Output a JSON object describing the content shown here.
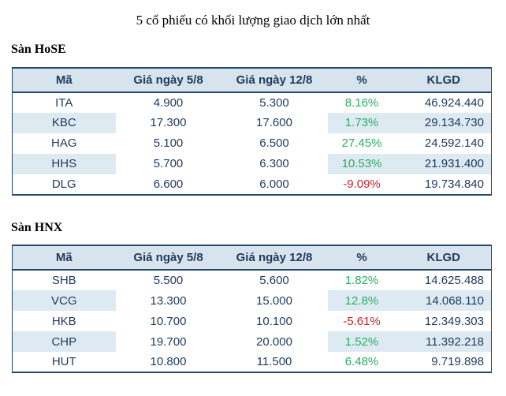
{
  "page": {
    "title": "5 cổ phiếu có khối lượng giao dịch lớn nhất"
  },
  "colors": {
    "header_bg": "#d7e4ee",
    "stripe_bg": "#ddeaf2",
    "border": "#25476a",
    "text_navy": "#1f3a5c",
    "positive": "#2aad60",
    "negative": "#c1262d",
    "page_bg": "#ffffff"
  },
  "chart_data": [
    {
      "type": "table",
      "title": "Sàn HoSE",
      "columns": [
        "Mã",
        "Giá ngày 5/8",
        "Giá ngày 12/8",
        "%",
        "KLGD"
      ],
      "rows": [
        {
          "cells": [
            "ITA",
            "4.900",
            "5.300",
            "8.16%",
            "46.924.440"
          ],
          "trend": "up"
        },
        {
          "cells": [
            "KBC",
            "17.300",
            "17.600",
            "1.73%",
            "29.134.730"
          ],
          "trend": "up"
        },
        {
          "cells": [
            "HAG",
            "5.100",
            "6.500",
            "27.45%",
            "24.592.140"
          ],
          "trend": "up"
        },
        {
          "cells": [
            "HHS",
            "5.700",
            "6.300",
            "10.53%",
            "21.931.400"
          ],
          "trend": "up"
        },
        {
          "cells": [
            "DLG",
            "6.600",
            "6.000",
            "-9.09%",
            "19.734.840"
          ],
          "trend": "down"
        }
      ]
    },
    {
      "type": "table",
      "title": "Sàn HNX",
      "columns": [
        "Mã",
        "Giá ngày 5/8",
        "Giá ngày 12/8",
        "%",
        "KLGD"
      ],
      "rows": [
        {
          "cells": [
            "SHB",
            "5.500",
            "5.600",
            "1.82%",
            "14.625.488"
          ],
          "trend": "up"
        },
        {
          "cells": [
            "VCG",
            "13.300",
            "15.000",
            "12.8%",
            "14.068.110"
          ],
          "trend": "up"
        },
        {
          "cells": [
            "HKB",
            "10.700",
            "10.100",
            "-5.61%",
            "12.349.303"
          ],
          "trend": "down"
        },
        {
          "cells": [
            "CHP",
            "19.700",
            "20.000",
            "1.52%",
            "11.392.218"
          ],
          "trend": "up"
        },
        {
          "cells": [
            "HUT",
            "10.800",
            "11.500",
            "6.48%",
            "9.719.898"
          ],
          "trend": "up"
        }
      ]
    }
  ]
}
